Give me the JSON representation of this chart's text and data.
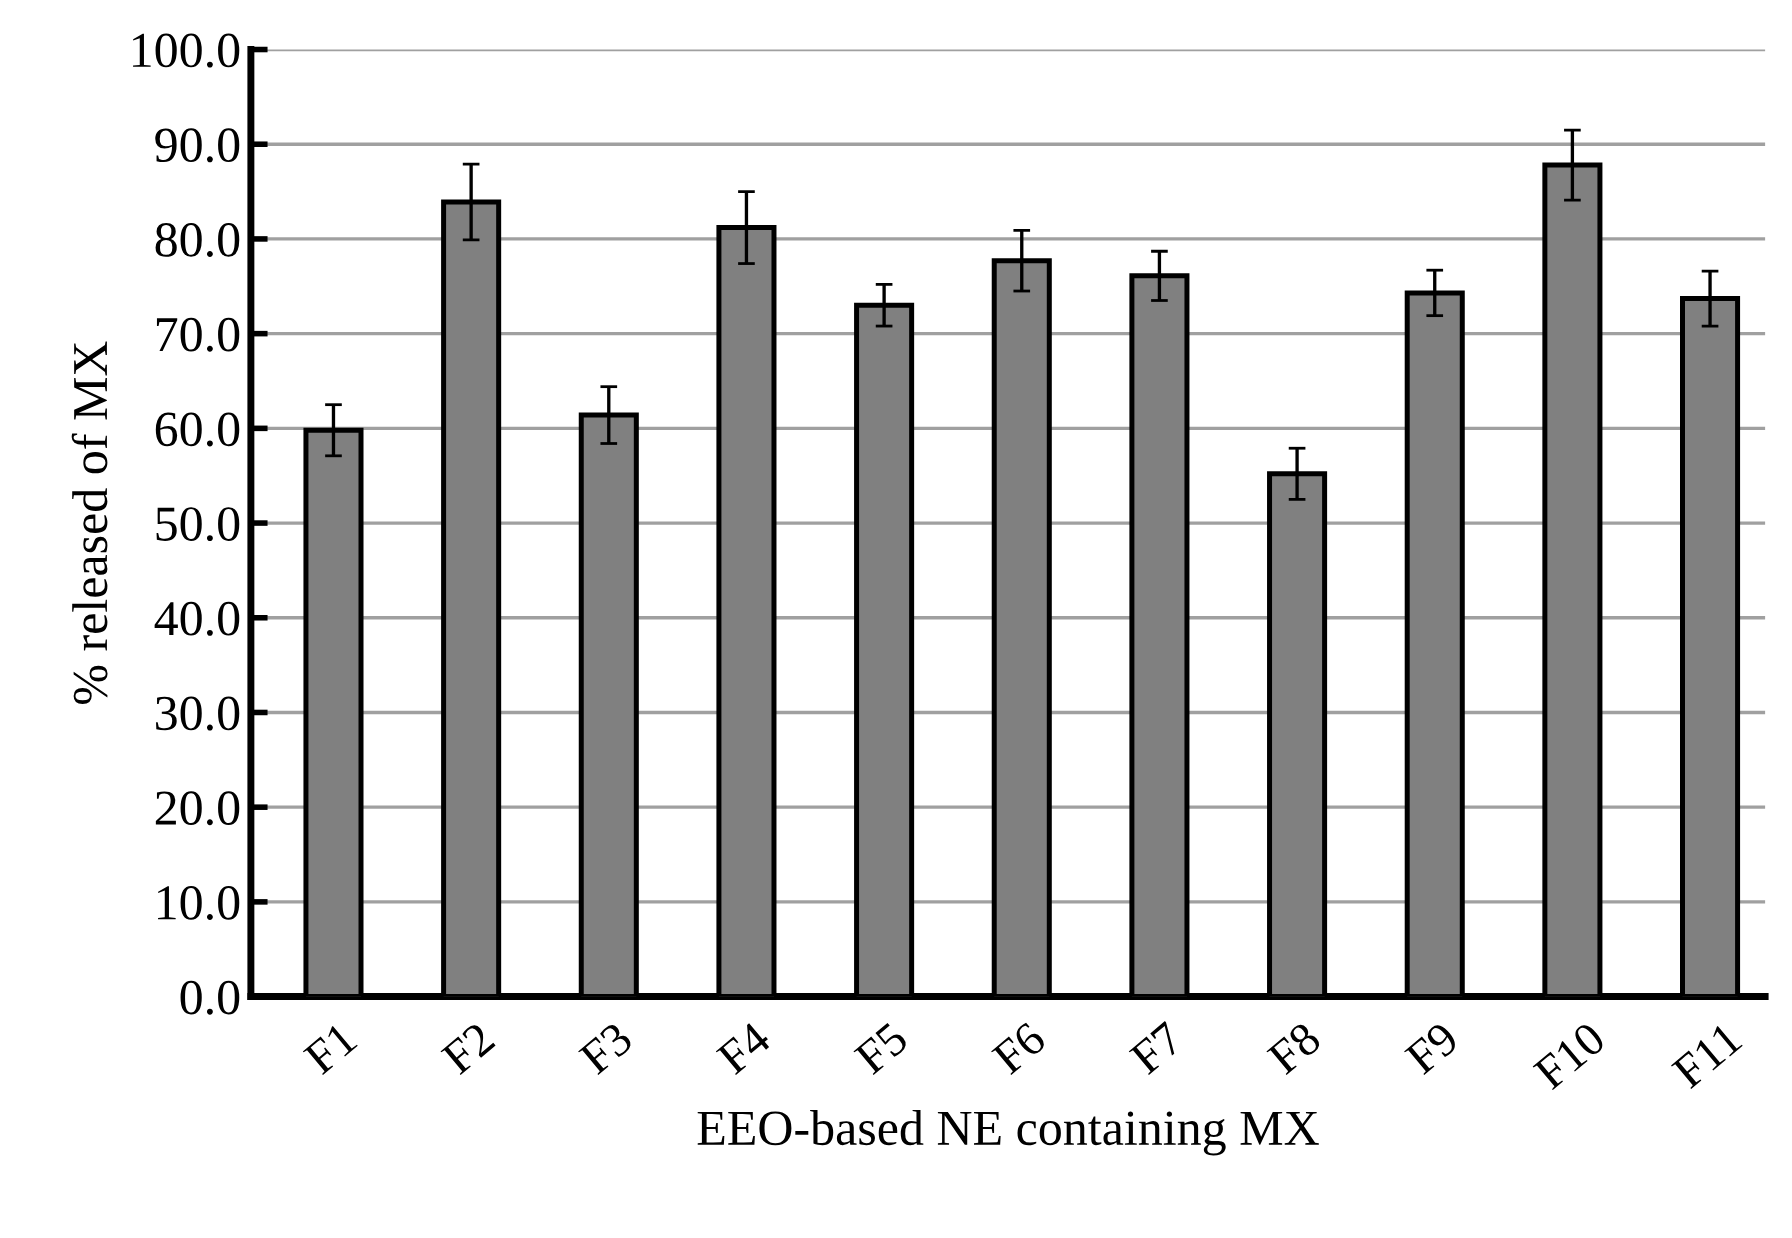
{
  "chart_data": {
    "type": "bar",
    "xlabel": "EEO-based NE containing MX",
    "ylabel": "% released of MX",
    "categories": [
      "F1",
      "F2",
      "F3",
      "F4",
      "F5",
      "F6",
      "F7",
      "F8",
      "F9",
      "F10",
      "F11"
    ],
    "values": [
      59.8,
      83.9,
      61.4,
      81.2,
      73.0,
      77.7,
      76.1,
      55.2,
      74.3,
      87.8,
      73.7
    ],
    "errors": [
      2.7,
      4.0,
      3.0,
      3.8,
      2.2,
      3.2,
      2.6,
      2.7,
      2.4,
      3.7,
      2.9
    ],
    "color": "#808080",
    "ylim": [
      0,
      100
    ],
    "yticks": [
      {
        "value": 0,
        "label": "0.0"
      },
      {
        "value": 10,
        "label": "10.0"
      },
      {
        "value": 20,
        "label": "20.0"
      },
      {
        "value": 30,
        "label": "30.0"
      },
      {
        "value": 40,
        "label": "40.0"
      },
      {
        "value": 50,
        "label": "50.0"
      },
      {
        "value": 60,
        "label": "60.0"
      },
      {
        "value": 70,
        "label": "70.0"
      },
      {
        "value": 80,
        "label": "80.0"
      },
      {
        "value": 90,
        "label": "90.0"
      },
      {
        "value": 100,
        "label": "100.0"
      }
    ],
    "grid": "y",
    "legend": false
  }
}
